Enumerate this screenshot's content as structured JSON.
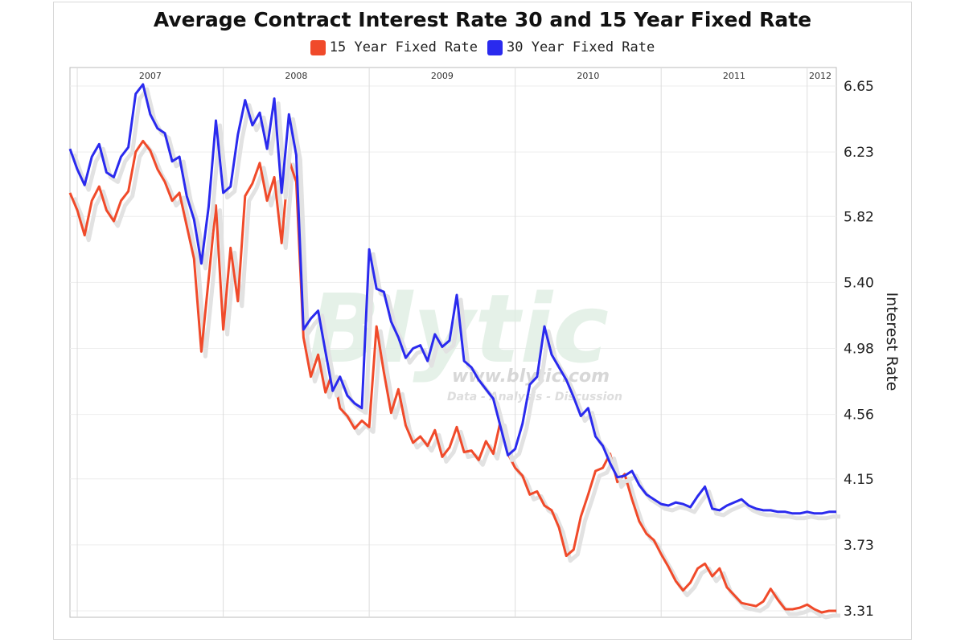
{
  "chart_data": {
    "type": "line",
    "title": "Average Contract Interest Rate 30 and 15 Year Fixed Rate",
    "ylabel": "Interest Rate",
    "xlabel": "",
    "ylim": [
      3.31,
      6.65
    ],
    "yticks": [
      "6.65",
      "6.23",
      "5.82",
      "5.40",
      "4.98",
      "4.56",
      "4.15",
      "3.73",
      "3.31"
    ],
    "year_labels": [
      "2007",
      "2008",
      "2009",
      "2010",
      "2011",
      "2012"
    ],
    "x_start": 2006.85,
    "x_end": 2012.1,
    "grid": true,
    "legend_position": "top",
    "watermark": {
      "main": "Blytic",
      "url": "www.blytic.com",
      "tagline": "Data - Analysis - Discussion"
    },
    "series": [
      {
        "name": "15 Year Fixed Rate",
        "color": "#f04a2a",
        "x": [
          2006.85,
          2006.9,
          2006.95,
          2007.0,
          2007.05,
          2007.1,
          2007.15,
          2007.2,
          2007.25,
          2007.3,
          2007.35,
          2007.4,
          2007.45,
          2007.5,
          2007.55,
          2007.6,
          2007.65,
          2007.7,
          2007.75,
          2007.8,
          2007.85,
          2007.9,
          2007.95,
          2008.0,
          2008.05,
          2008.1,
          2008.15,
          2008.2,
          2008.25,
          2008.3,
          2008.35,
          2008.4,
          2008.45,
          2008.5,
          2008.55,
          2008.6,
          2008.65,
          2008.7,
          2008.75,
          2008.8,
          2008.85,
          2008.9,
          2008.95,
          2009.0,
          2009.05,
          2009.1,
          2009.15,
          2009.2,
          2009.25,
          2009.3,
          2009.35,
          2009.4,
          2009.45,
          2009.5,
          2009.55,
          2009.6,
          2009.65,
          2009.7,
          2009.75,
          2009.8,
          2009.85,
          2009.9,
          2009.95,
          2010.0,
          2010.05,
          2010.1,
          2010.15,
          2010.2,
          2010.25,
          2010.3,
          2010.35,
          2010.4,
          2010.45,
          2010.5,
          2010.55,
          2010.6,
          2010.65,
          2010.7,
          2010.75,
          2010.8,
          2010.85,
          2010.9,
          2010.95,
          2011.0,
          2011.05,
          2011.1,
          2011.15,
          2011.2,
          2011.25,
          2011.3,
          2011.35,
          2011.4,
          2011.45,
          2011.5,
          2011.55,
          2011.6,
          2011.65,
          2011.7,
          2011.75,
          2011.8,
          2011.85,
          2011.9,
          2011.95,
          2012.0,
          2012.05,
          2012.1
        ],
        "values": [
          5.97,
          5.86,
          5.7,
          5.92,
          6.01,
          5.86,
          5.79,
          5.92,
          5.98,
          6.23,
          6.3,
          6.24,
          6.12,
          6.04,
          5.92,
          5.97,
          5.76,
          5.55,
          4.96,
          5.42,
          5.89,
          5.1,
          5.62,
          5.28,
          5.95,
          6.03,
          6.16,
          5.92,
          6.07,
          5.65,
          6.18,
          6.04,
          5.05,
          4.8,
          4.94,
          4.7,
          4.83,
          4.6,
          4.55,
          4.47,
          4.52,
          4.48,
          5.12,
          4.83,
          4.57,
          4.72,
          4.49,
          4.38,
          4.42,
          4.36,
          4.46,
          4.29,
          4.35,
          4.48,
          4.32,
          4.33,
          4.27,
          4.39,
          4.31,
          4.52,
          4.31,
          4.22,
          4.17,
          4.05,
          4.07,
          3.98,
          3.95,
          3.84,
          3.66,
          3.7,
          3.91,
          4.05,
          4.2,
          4.22,
          4.31,
          4.13,
          4.18,
          4.02,
          3.88,
          3.8,
          3.76,
          3.67,
          3.59,
          3.5,
          3.44,
          3.49,
          3.58,
          3.61,
          3.53,
          3.58,
          3.46,
          3.41,
          3.36,
          3.35,
          3.34,
          3.37,
          3.45,
          3.38,
          3.32,
          3.32,
          3.33,
          3.35,
          3.32,
          3.3,
          3.31,
          3.31
        ]
      },
      {
        "name": "30 Year Fixed Rate",
        "color": "#2a2aee",
        "x": [
          2006.85,
          2006.9,
          2006.95,
          2007.0,
          2007.05,
          2007.1,
          2007.15,
          2007.2,
          2007.25,
          2007.3,
          2007.35,
          2007.4,
          2007.45,
          2007.5,
          2007.55,
          2007.6,
          2007.65,
          2007.7,
          2007.75,
          2007.8,
          2007.85,
          2007.9,
          2007.95,
          2008.0,
          2008.05,
          2008.1,
          2008.15,
          2008.2,
          2008.25,
          2008.3,
          2008.35,
          2008.4,
          2008.45,
          2008.5,
          2008.55,
          2008.6,
          2008.65,
          2008.7,
          2008.75,
          2008.8,
          2008.85,
          2008.9,
          2008.95,
          2009.0,
          2009.05,
          2009.1,
          2009.15,
          2009.2,
          2009.25,
          2009.3,
          2009.35,
          2009.4,
          2009.45,
          2009.5,
          2009.55,
          2009.6,
          2009.65,
          2009.7,
          2009.75,
          2009.8,
          2009.85,
          2009.9,
          2009.95,
          2010.0,
          2010.05,
          2010.1,
          2010.15,
          2010.2,
          2010.25,
          2010.3,
          2010.35,
          2010.4,
          2010.45,
          2010.5,
          2010.55,
          2010.6,
          2010.65,
          2010.7,
          2010.75,
          2010.8,
          2010.85,
          2010.9,
          2010.95,
          2011.0,
          2011.05,
          2011.1,
          2011.15,
          2011.2,
          2011.25,
          2011.3,
          2011.35,
          2011.4,
          2011.45,
          2011.5,
          2011.55,
          2011.6,
          2011.65,
          2011.7,
          2011.75,
          2011.8,
          2011.85,
          2011.9,
          2011.95,
          2012.0,
          2012.05,
          2012.1
        ],
        "values": [
          6.25,
          6.12,
          6.02,
          6.2,
          6.28,
          6.1,
          6.07,
          6.2,
          6.26,
          6.6,
          6.66,
          6.47,
          6.38,
          6.35,
          6.17,
          6.2,
          5.95,
          5.8,
          5.52,
          5.88,
          6.43,
          5.97,
          6.01,
          6.34,
          6.56,
          6.4,
          6.48,
          6.25,
          6.57,
          5.97,
          6.47,
          6.21,
          5.1,
          5.17,
          5.22,
          4.96,
          4.71,
          4.8,
          4.68,
          4.63,
          4.6,
          5.61,
          5.36,
          5.34,
          5.15,
          5.05,
          4.92,
          4.98,
          5.0,
          4.9,
          5.07,
          4.99,
          5.03,
          5.32,
          4.9,
          4.86,
          4.78,
          4.72,
          4.66,
          4.48,
          4.3,
          4.34,
          4.5,
          4.75,
          4.8,
          5.12,
          4.94,
          4.86,
          4.78,
          4.67,
          4.55,
          4.6,
          4.42,
          4.36,
          4.25,
          4.16,
          4.17,
          4.2,
          4.11,
          4.05,
          4.02,
          3.99,
          3.98,
          4.0,
          3.99,
          3.97,
          4.04,
          4.1,
          3.96,
          3.95,
          3.98,
          4.0,
          4.02,
          3.98,
          3.96,
          3.95,
          3.95,
          3.94,
          3.94,
          3.93,
          3.93,
          3.94,
          3.93,
          3.93,
          3.94,
          3.94
        ]
      }
    ]
  }
}
